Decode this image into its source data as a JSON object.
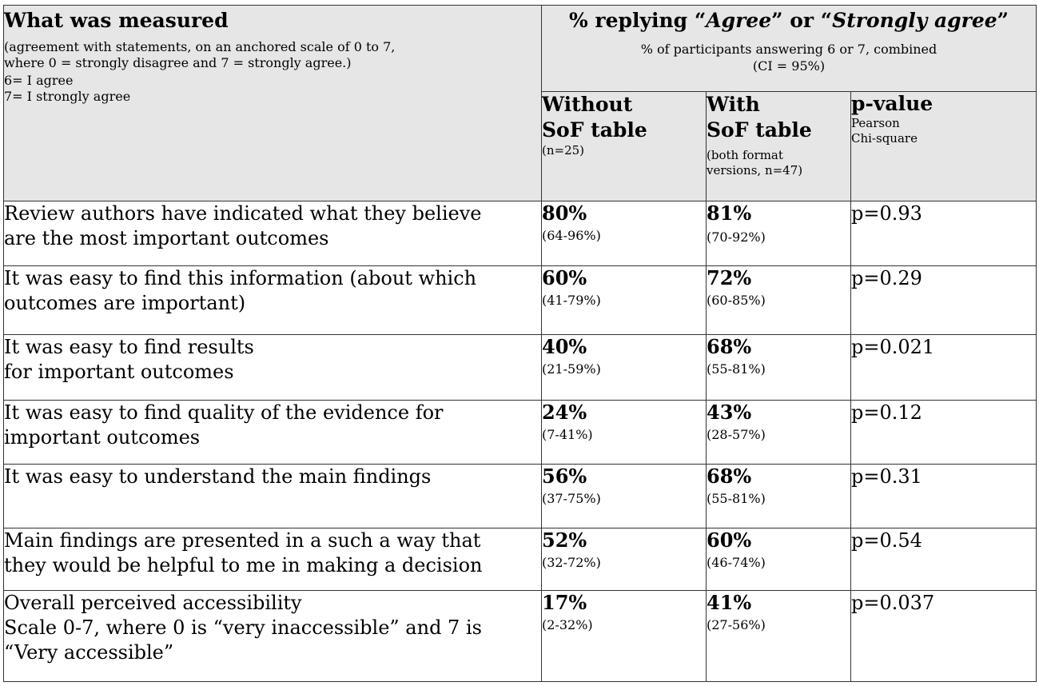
{
  "header": {
    "measured_title": "What was measured",
    "measured_desc_1": "(agreement with statements, on an anchored scale of 0 to 7,",
    "measured_desc_2": "where 0 = strongly disagree and 7 = strongly agree.)",
    "scale_6": "6= I agree",
    "scale_7": "7= I strongly agree",
    "pct_title_prefix": "% replying “",
    "pct_title_agree": "Agree",
    "pct_title_mid": "” or “",
    "pct_title_strongly": "Strongly agree",
    "pct_title_suffix": "”",
    "pct_sub_1": "% of participants answering 6 or 7, combined",
    "pct_sub_2": "(CI = 95%)",
    "col_without_1": "Without",
    "col_without_2": "SoF table",
    "col_without_note": "(n=25)",
    "col_with_1": "With",
    "col_with_2": "SoF table",
    "col_with_note_1": "(both format",
    "col_with_note_2": "versions, n=47)",
    "col_pvalue": "p-value",
    "col_pvalue_note_1": "Pearson",
    "col_pvalue_note_2": "Chi-square"
  },
  "rows": [
    {
      "line1": "Review authors have indicated what they believe",
      "line2": "are the most important outcomes",
      "line3": "",
      "without_pct": "80%",
      "without_ci": "(64-96%)",
      "with_pct": "81%",
      "with_ci": "(70-92%)",
      "p": "p=0.93"
    },
    {
      "line1": "It was easy to find this information (about which",
      "line2": "outcomes are important)",
      "line3": "",
      "without_pct": "60%",
      "without_ci": "(41-79%)",
      "with_pct": "72%",
      "with_ci": "(60-85%)",
      "p": "p=0.29"
    },
    {
      "line1": "It was easy to find results",
      "line2": "for important outcomes",
      "line3": "",
      "without_pct": "40%",
      "without_ci": "(21-59%)",
      "with_pct": "68%",
      "with_ci": "(55-81%)",
      "p": "p=0.021"
    },
    {
      "line1": "It was easy to find quality of the evidence for",
      "line2": "important outcomes",
      "line3": "",
      "without_pct": "24%",
      "without_ci": "(7-41%)",
      "with_pct": "43%",
      "with_ci": "(28-57%)",
      "p": "p=0.12"
    },
    {
      "line1": "It was easy to understand the main findings",
      "line2": "",
      "line3": "",
      "without_pct": "56%",
      "without_ci": "(37-75%)",
      "with_pct": "68%",
      "with_ci": "(55-81%)",
      "p": "p=0.31"
    },
    {
      "line1": "Main findings are presented in a such a way that",
      "line2": "they would be helpful to me in making a decision",
      "line3": "",
      "without_pct": "52%",
      "without_ci": "(32-72%)",
      "with_pct": "60%",
      "with_ci": "(46-74%)",
      "p": "p=0.54"
    },
    {
      "line1": "Overall perceived accessibility",
      "line2": "Scale 0-7, where 0 is “very inaccessible” and 7 is",
      "line3": "“Very accessible”",
      "without_pct": "17%",
      "without_ci": "(2-32%)",
      "with_pct": "41%",
      "with_ci": "(27-56%)",
      "p": "p=0.037"
    }
  ]
}
